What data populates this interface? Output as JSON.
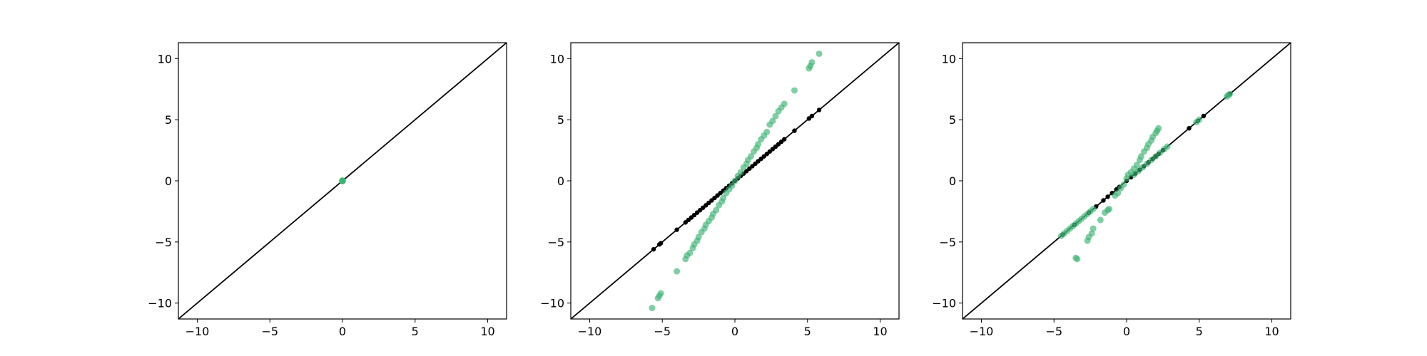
{
  "figure": {
    "background": "#ffffff",
    "line_color": "#000000",
    "marker_color": "#3cb371"
  },
  "chart_data": [
    {
      "type": "scatter",
      "title": "",
      "xlabel": "",
      "ylabel": "",
      "xlim": [
        -11.3,
        11.3
      ],
      "ylim": [
        -11.3,
        11.3
      ],
      "xticks": [
        -10,
        -5,
        0,
        5,
        10
      ],
      "yticks": [
        -10,
        -5,
        0,
        5,
        10
      ],
      "xtick_labels": [
        "−10",
        "−5",
        "0",
        "5",
        "10"
      ],
      "ytick_labels": [
        "−10",
        "−5",
        "0",
        "5",
        "10"
      ],
      "grid": false,
      "reference_line": "y = x",
      "series": [
        {
          "color": "#000000",
          "points": [
            [
              0.0,
              0.0
            ]
          ]
        },
        {
          "color": "#3cb371",
          "points": [
            [
              0.0,
              0.0
            ],
            [
              0.02,
              -0.02
            ],
            [
              -0.02,
              0.02
            ],
            [
              0.01,
              0.01
            ],
            [
              -0.01,
              -0.01
            ]
          ]
        }
      ]
    },
    {
      "type": "scatter",
      "title": "",
      "xlabel": "",
      "ylabel": "",
      "xlim": [
        -11.3,
        11.3
      ],
      "ylim": [
        -11.3,
        11.3
      ],
      "xticks": [
        -10,
        -5,
        0,
        5,
        10
      ],
      "yticks": [
        -10,
        -5,
        0,
        5,
        10
      ],
      "xtick_labels": [
        "−10",
        "−5",
        "0",
        "5",
        "10"
      ],
      "ytick_labels": [
        "−10",
        "−5",
        "0",
        "5",
        "10"
      ],
      "grid": false,
      "reference_line": "y = x",
      "series": [
        {
          "color": "#000000",
          "points": [
            [
              -5.6,
              -5.6
            ],
            [
              -5.2,
              -5.2
            ],
            [
              -5.1,
              -5.1
            ],
            [
              -4.0,
              -4.0
            ],
            [
              -3.4,
              -3.4
            ],
            [
              -3.2,
              -3.2
            ],
            [
              -3.0,
              -3.0
            ],
            [
              -2.8,
              -2.8
            ],
            [
              -2.6,
              -2.6
            ],
            [
              -2.4,
              -2.4
            ],
            [
              -2.2,
              -2.2
            ],
            [
              -2.0,
              -2.0
            ],
            [
              -1.8,
              -1.8
            ],
            [
              -1.6,
              -1.6
            ],
            [
              -1.4,
              -1.4
            ],
            [
              -1.2,
              -1.2
            ],
            [
              -1.0,
              -1.0
            ],
            [
              -0.8,
              -0.8
            ],
            [
              -0.6,
              -0.6
            ],
            [
              -0.4,
              -0.4
            ],
            [
              -0.2,
              -0.2
            ],
            [
              0.0,
              0.0
            ],
            [
              0.2,
              0.2
            ],
            [
              0.4,
              0.4
            ],
            [
              0.6,
              0.6
            ],
            [
              0.8,
              0.8
            ],
            [
              1.0,
              1.0
            ],
            [
              1.2,
              1.2
            ],
            [
              1.4,
              1.4
            ],
            [
              1.6,
              1.6
            ],
            [
              1.8,
              1.8
            ],
            [
              2.0,
              2.0
            ],
            [
              2.2,
              2.2
            ],
            [
              2.4,
              2.4
            ],
            [
              2.6,
              2.6
            ],
            [
              2.8,
              2.8
            ],
            [
              3.0,
              3.0
            ],
            [
              3.2,
              3.2
            ],
            [
              3.4,
              3.4
            ],
            [
              4.1,
              4.1
            ],
            [
              5.1,
              5.1
            ],
            [
              5.3,
              5.3
            ],
            [
              5.8,
              5.8
            ]
          ]
        },
        {
          "color": "#3cb371",
          "points": [
            [
              -5.7,
              -10.4
            ],
            [
              -5.3,
              -9.6
            ],
            [
              -5.2,
              -9.4
            ],
            [
              -5.1,
              -9.2
            ],
            [
              -4.0,
              -7.4
            ],
            [
              -3.4,
              -6.4
            ],
            [
              -3.3,
              -6.1
            ],
            [
              -3.1,
              -5.9
            ],
            [
              -2.9,
              -5.5
            ],
            [
              -2.8,
              -5.2
            ],
            [
              -2.6,
              -4.9
            ],
            [
              -2.5,
              -4.6
            ],
            [
              -2.3,
              -4.2
            ],
            [
              -2.1,
              -3.9
            ],
            [
              -2.0,
              -3.6
            ],
            [
              -1.8,
              -3.3
            ],
            [
              -1.6,
              -3.0
            ],
            [
              -1.5,
              -2.7
            ],
            [
              -1.3,
              -2.4
            ],
            [
              -1.1,
              -2.0
            ],
            [
              -0.9,
              -1.7
            ],
            [
              -0.8,
              -1.4
            ],
            [
              -0.6,
              -1.0
            ],
            [
              -0.4,
              -0.7
            ],
            [
              -0.2,
              -0.4
            ],
            [
              0.0,
              0.0
            ],
            [
              0.2,
              0.4
            ],
            [
              0.4,
              0.7
            ],
            [
              0.6,
              1.1
            ],
            [
              0.8,
              1.4
            ],
            [
              0.9,
              1.7
            ],
            [
              1.1,
              2.0
            ],
            [
              1.3,
              2.4
            ],
            [
              1.5,
              2.7
            ],
            [
              1.6,
              3.0
            ],
            [
              1.8,
              3.4
            ],
            [
              2.0,
              3.7
            ],
            [
              2.2,
              4.0
            ],
            [
              2.4,
              4.6
            ],
            [
              2.6,
              4.9
            ],
            [
              2.8,
              5.3
            ],
            [
              3.0,
              5.7
            ],
            [
              3.2,
              6.0
            ],
            [
              3.4,
              6.3
            ],
            [
              4.1,
              7.4
            ],
            [
              5.1,
              9.2
            ],
            [
              5.2,
              9.4
            ],
            [
              5.3,
              9.7
            ],
            [
              5.8,
              10.4
            ]
          ]
        }
      ]
    },
    {
      "type": "scatter",
      "title": "",
      "xlabel": "",
      "ylabel": "",
      "xlim": [
        -11.3,
        11.3
      ],
      "ylim": [
        -11.3,
        11.3
      ],
      "xticks": [
        -10,
        -5,
        0,
        5,
        10
      ],
      "yticks": [
        -10,
        -5,
        0,
        5,
        10
      ],
      "xtick_labels": [
        "−10",
        "−5",
        "0",
        "5",
        "10"
      ],
      "ytick_labels": [
        "−10",
        "−5",
        "0",
        "5",
        "10"
      ],
      "grid": false,
      "reference_line": "y = x",
      "series": [
        {
          "color": "#000000",
          "points": [
            [
              -4.4,
              -4.4
            ],
            [
              -3.6,
              -3.6
            ],
            [
              -2.6,
              -2.6
            ],
            [
              -2.1,
              -2.1
            ],
            [
              -1.6,
              -1.6
            ],
            [
              -1.3,
              -1.3
            ],
            [
              -1.0,
              -1.0
            ],
            [
              -0.7,
              -0.7
            ],
            [
              -0.5,
              -0.5
            ],
            [
              0.0,
              0.0
            ],
            [
              0.3,
              0.3
            ],
            [
              0.6,
              0.6
            ],
            [
              0.9,
              0.9
            ],
            [
              1.2,
              1.2
            ],
            [
              1.5,
              1.5
            ],
            [
              1.8,
              1.8
            ],
            [
              2.0,
              2.0
            ],
            [
              2.2,
              2.2
            ],
            [
              2.5,
              2.5
            ],
            [
              4.3,
              4.3
            ],
            [
              4.9,
              4.9
            ],
            [
              5.3,
              5.3
            ],
            [
              7.1,
              7.1
            ]
          ]
        },
        {
          "color": "#3cb371",
          "points": [
            [
              -4.5,
              -4.5
            ],
            [
              -4.3,
              -4.3
            ],
            [
              -4.1,
              -4.1
            ],
            [
              -3.9,
              -3.9
            ],
            [
              -3.7,
              -3.7
            ],
            [
              -3.5,
              -3.5
            ],
            [
              -3.3,
              -3.3
            ],
            [
              -3.1,
              -3.1
            ],
            [
              -2.9,
              -2.9
            ],
            [
              -2.7,
              -2.7
            ],
            [
              -2.5,
              -2.5
            ],
            [
              -2.3,
              -2.3
            ],
            [
              -3.5,
              -6.3
            ],
            [
              -3.4,
              -6.4
            ],
            [
              -2.7,
              -4.9
            ],
            [
              -2.6,
              -4.6
            ],
            [
              -2.4,
              -4.3
            ],
            [
              -2.3,
              -3.9
            ],
            [
              -1.8,
              -3.2
            ],
            [
              -1.5,
              -2.6
            ],
            [
              -1.3,
              -2.4
            ],
            [
              -1.2,
              -2.3
            ],
            [
              -0.8,
              -1.2
            ],
            [
              -0.6,
              -1.0
            ],
            [
              -0.4,
              -0.6
            ],
            [
              -0.2,
              -0.3
            ],
            [
              0.0,
              0.2
            ],
            [
              0.1,
              0.5
            ],
            [
              0.3,
              0.7
            ],
            [
              0.5,
              1.0
            ],
            [
              0.7,
              1.3
            ],
            [
              0.9,
              1.7
            ],
            [
              1.0,
              2.0
            ],
            [
              1.2,
              2.4
            ],
            [
              1.4,
              2.7
            ],
            [
              1.5,
              3.0
            ],
            [
              1.7,
              3.3
            ],
            [
              1.8,
              3.6
            ],
            [
              2.0,
              3.9
            ],
            [
              2.1,
              4.1
            ],
            [
              2.2,
              4.3
            ],
            [
              0.5,
              0.5
            ],
            [
              0.8,
              0.8
            ],
            [
              1.1,
              1.1
            ],
            [
              1.4,
              1.4
            ],
            [
              1.7,
              1.7
            ],
            [
              2.0,
              2.0
            ],
            [
              2.3,
              2.3
            ],
            [
              2.6,
              2.6
            ],
            [
              2.8,
              2.8
            ],
            [
              4.8,
              4.8
            ],
            [
              5.0,
              5.0
            ],
            [
              6.9,
              6.9
            ],
            [
              7.0,
              7.0
            ],
            [
              7.1,
              7.1
            ]
          ]
        }
      ]
    }
  ]
}
